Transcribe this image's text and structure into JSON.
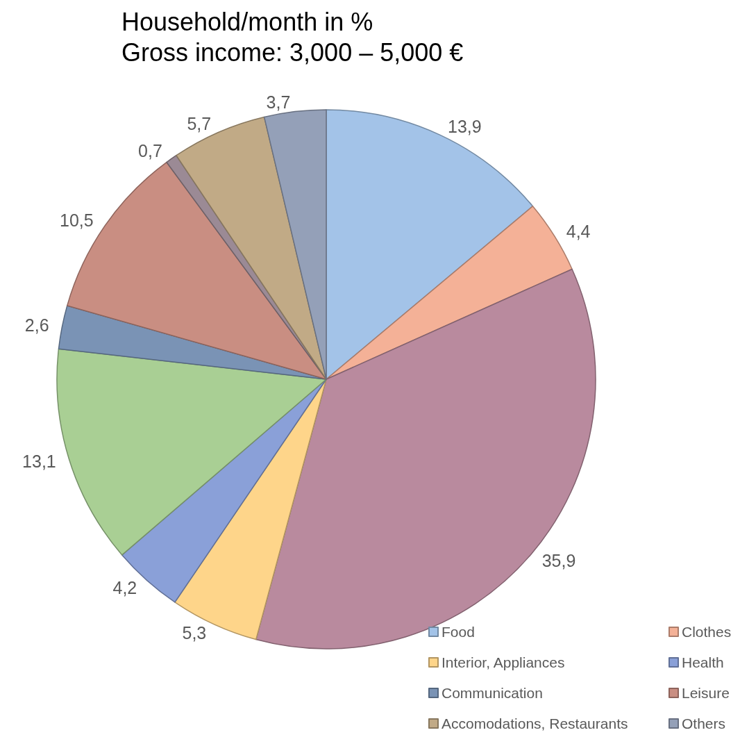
{
  "chart_data": {
    "type": "pie",
    "title": "Household/month in %",
    "subtitle": "Gross income: 3,000 – 5,000 €",
    "categories": [
      "Food",
      "Clothes",
      null,
      "Interior, Appliances",
      "Health",
      null,
      "Communication",
      "Leisure",
      null,
      "Accomodations, Restaurants",
      "Others"
    ],
    "values": [
      13.9,
      4.4,
      35.9,
      5.3,
      4.2,
      13.1,
      2.6,
      10.5,
      0.7,
      5.7,
      3.7
    ],
    "value_labels": [
      "13,9",
      "4,4",
      "35,9",
      "5,3",
      "4,2",
      "13,1",
      "2,6",
      "10,5",
      "0,7",
      "5,7",
      "3,7"
    ],
    "colors": [
      "#a3c3e8",
      "#f4b197",
      "#b98a9e",
      "#fed58a",
      "#8aa0d8",
      "#a9cf94",
      "#7a93b5",
      "#c98e82",
      "#9b8a95",
      "#c1aa86",
      "#94a0b8"
    ],
    "legend": "bottom right"
  }
}
